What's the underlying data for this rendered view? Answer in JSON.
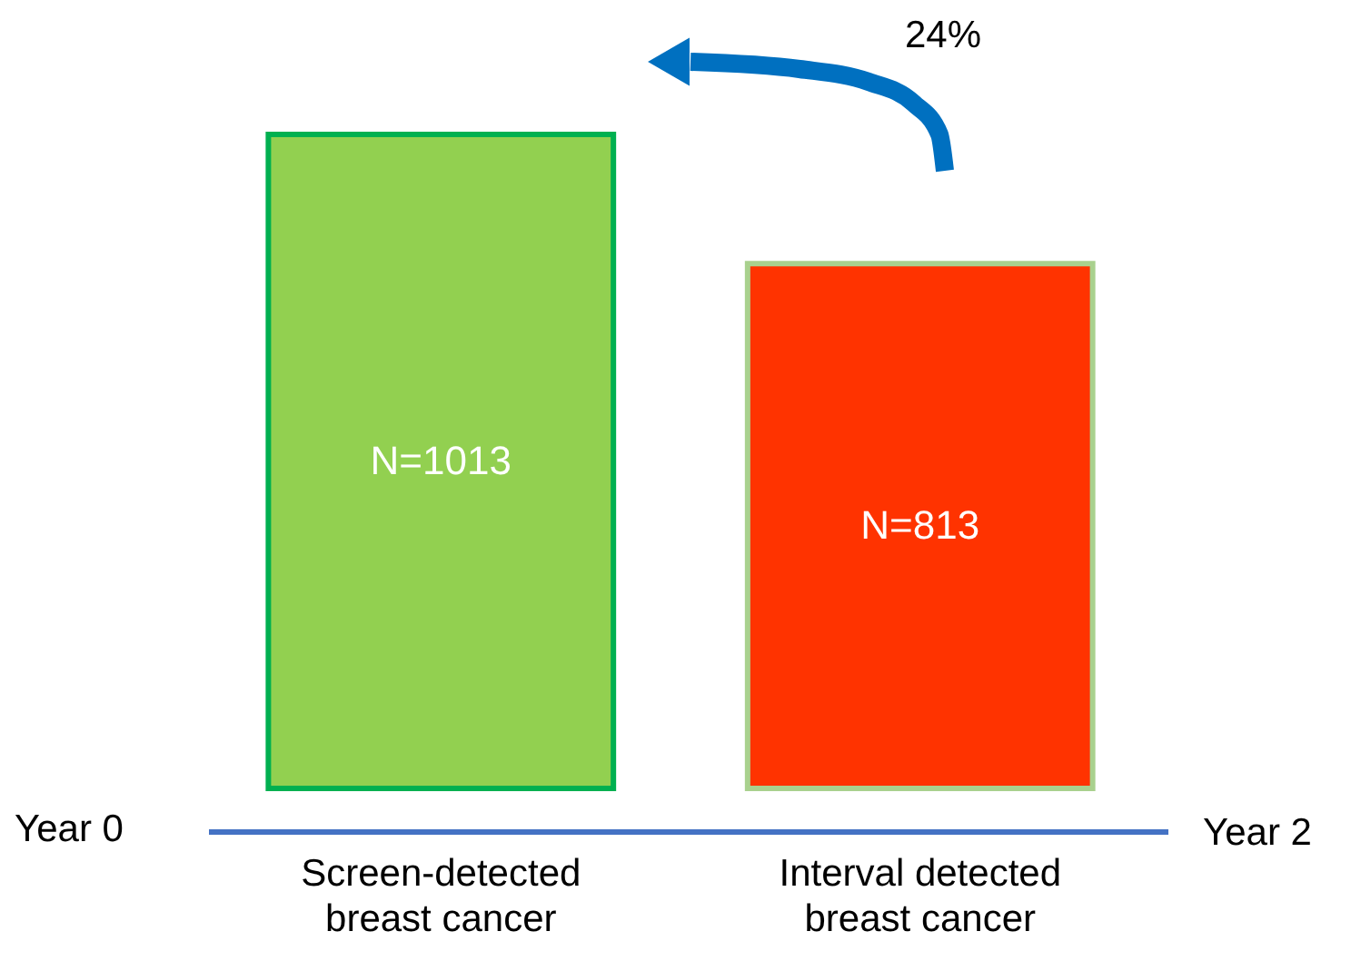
{
  "chart_data": {
    "type": "bar",
    "categories": [
      "Screen-detected breast cancer",
      "Interval detected breast cancer"
    ],
    "values": [
      1013,
      813
    ],
    "colors": [
      "#92d050",
      "#ff3300"
    ],
    "value_labels": [
      "N=1013",
      "N=813"
    ],
    "tick_labels": "x",
    "annotations": [
      "24%",
      "Year 0",
      "Year 2"
    ]
  }
}
